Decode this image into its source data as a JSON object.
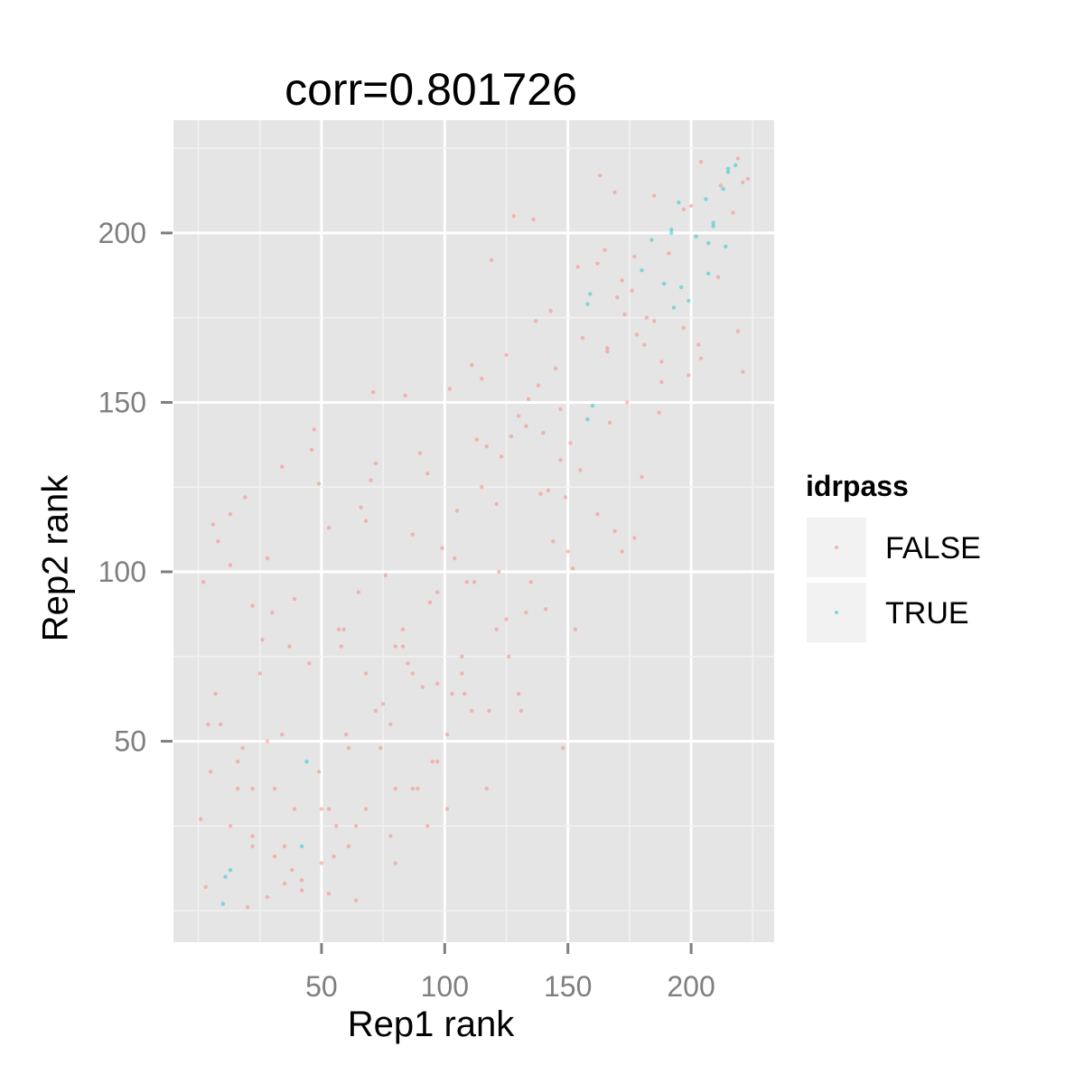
{
  "chart_data": {
    "type": "scatter",
    "title": "corr=0.801726",
    "xlabel": "Rep1 rank",
    "ylabel": "Rep2 rank",
    "xlim": [
      -10.1,
      233.7
    ],
    "ylim": [
      -9.3,
      233.3
    ],
    "xticks": [
      50,
      100,
      150,
      200
    ],
    "yticks": [
      50,
      100,
      150,
      200
    ],
    "xtick_labels": [
      "50",
      "100",
      "150",
      "200"
    ],
    "ytick_labels": [
      "50",
      "100",
      "150",
      "200"
    ],
    "grid": true,
    "legend": {
      "title": "idrpass",
      "placement": "right",
      "entries": [
        "FALSE",
        "TRUE"
      ]
    },
    "colors": {
      "FALSE": "#F8766D",
      "TRUE": "#00BFC4"
    },
    "series": [
      {
        "name": "FALSE",
        "points": [
          [
            204,
            221
          ],
          [
            219,
            222
          ],
          [
            223,
            216
          ],
          [
            221,
            215
          ],
          [
            212,
            214
          ],
          [
            217,
            206
          ],
          [
            200,
            208
          ],
          [
            197,
            207
          ],
          [
            185,
            211
          ],
          [
            163,
            217
          ],
          [
            169,
            212
          ],
          [
            128,
            205
          ],
          [
            136,
            204
          ],
          [
            119,
            192
          ],
          [
            165,
            195
          ],
          [
            177,
            193
          ],
          [
            191,
            194
          ],
          [
            154,
            190
          ],
          [
            162,
            191
          ],
          [
            172,
            186
          ],
          [
            176,
            183
          ],
          [
            170,
            181
          ],
          [
            211,
            187
          ],
          [
            173,
            176
          ],
          [
            182,
            175
          ],
          [
            185,
            174
          ],
          [
            197,
            172
          ],
          [
            219,
            171
          ],
          [
            178,
            170
          ],
          [
            181,
            167
          ],
          [
            156,
            169
          ],
          [
            166,
            166
          ],
          [
            166,
            165
          ],
          [
            203,
            167
          ],
          [
            204,
            163
          ],
          [
            221,
            159
          ],
          [
            188,
            162
          ],
          [
            199,
            158
          ],
          [
            188,
            156
          ],
          [
            143,
            177
          ],
          [
            137,
            174
          ],
          [
            125,
            164
          ],
          [
            111,
            161
          ],
          [
            115,
            157
          ],
          [
            145,
            160
          ],
          [
            138,
            155
          ],
          [
            134,
            151
          ],
          [
            174,
            150
          ],
          [
            187,
            147
          ],
          [
            147,
            148
          ],
          [
            130,
            146
          ],
          [
            133,
            143
          ],
          [
            140,
            141
          ],
          [
            127,
            140
          ],
          [
            167,
            144
          ],
          [
            113,
            139
          ],
          [
            117,
            137
          ],
          [
            123,
            134
          ],
          [
            151,
            138
          ],
          [
            147,
            133
          ],
          [
            155,
            130
          ],
          [
            180,
            128
          ],
          [
            115,
            125
          ],
          [
            139,
            123
          ],
          [
            142,
            124
          ],
          [
            149,
            122
          ],
          [
            121,
            120
          ],
          [
            105,
            118
          ],
          [
            162,
            117
          ],
          [
            169,
            112
          ],
          [
            177,
            110
          ],
          [
            144,
            109
          ],
          [
            8,
            109
          ],
          [
            99,
            107
          ],
          [
            13,
            102
          ],
          [
            28,
            104
          ],
          [
            104,
            104
          ],
          [
            76,
            99
          ],
          [
            2,
            97
          ],
          [
            109,
            97
          ],
          [
            112,
            97
          ],
          [
            65,
            94
          ],
          [
            97,
            94
          ],
          [
            94,
            91
          ],
          [
            39,
            92
          ],
          [
            22,
            90
          ],
          [
            30,
            88
          ],
          [
            57,
            83
          ],
          [
            59,
            83
          ],
          [
            83,
            83
          ],
          [
            26,
            80
          ],
          [
            37,
            78
          ],
          [
            58,
            78
          ],
          [
            80,
            78
          ],
          [
            83,
            78
          ],
          [
            107,
            75
          ],
          [
            45,
            73
          ],
          [
            85,
            73
          ],
          [
            25,
            70
          ],
          [
            68,
            70
          ],
          [
            87,
            70
          ],
          [
            107,
            70
          ],
          [
            91,
            66
          ],
          [
            97,
            67
          ],
          [
            7,
            64
          ],
          [
            103,
            64
          ],
          [
            108,
            64
          ],
          [
            75,
            61
          ],
          [
            72,
            59
          ],
          [
            111,
            59
          ],
          [
            4,
            55
          ],
          [
            9,
            55
          ],
          [
            78,
            55
          ],
          [
            34,
            52
          ],
          [
            60,
            52
          ],
          [
            101,
            52
          ],
          [
            28,
            50
          ],
          [
            18,
            48
          ],
          [
            61,
            48
          ],
          [
            74,
            48
          ],
          [
            16,
            44
          ],
          [
            95,
            44
          ],
          [
            97,
            44
          ],
          [
            5,
            41
          ],
          [
            49,
            41
          ],
          [
            16,
            36
          ],
          [
            22,
            36
          ],
          [
            31,
            36
          ],
          [
            80,
            36
          ],
          [
            87,
            36
          ],
          [
            89,
            36
          ],
          [
            39,
            30
          ],
          [
            50,
            30
          ],
          [
            53,
            30
          ],
          [
            68,
            30
          ],
          [
            101,
            30
          ],
          [
            1,
            27
          ],
          [
            13,
            25
          ],
          [
            56,
            25
          ],
          [
            64,
            25
          ],
          [
            93,
            25
          ],
          [
            22,
            22
          ],
          [
            78,
            22
          ],
          [
            22,
            19
          ],
          [
            35,
            19
          ],
          [
            61,
            19
          ],
          [
            31,
            16
          ],
          [
            55,
            16
          ],
          [
            50,
            14
          ],
          [
            80,
            14
          ],
          [
            38,
            12
          ],
          [
            35,
            8
          ],
          [
            42,
            9
          ],
          [
            42,
            6
          ],
          [
            3,
            7
          ],
          [
            53,
            5
          ],
          [
            28,
            4
          ],
          [
            64,
            3
          ],
          [
            20,
            1
          ],
          [
            150,
            106
          ],
          [
            172,
            106
          ],
          [
            152,
            101
          ],
          [
            122,
            100
          ],
          [
            135,
            97
          ],
          [
            141,
            89
          ],
          [
            133,
            88
          ],
          [
            125,
            86
          ],
          [
            121,
            83
          ],
          [
            153,
            83
          ],
          [
            126,
            75
          ],
          [
            130,
            64
          ],
          [
            118,
            59
          ],
          [
            131,
            59
          ],
          [
            148,
            48
          ],
          [
            117,
            36
          ],
          [
            71,
            153
          ],
          [
            84,
            152
          ],
          [
            102,
            154
          ],
          [
            47,
            142
          ],
          [
            46,
            136
          ],
          [
            34,
            131
          ],
          [
            49,
            126
          ],
          [
            72,
            132
          ],
          [
            70,
            127
          ],
          [
            90,
            135
          ],
          [
            93,
            129
          ],
          [
            19,
            122
          ],
          [
            13,
            117
          ],
          [
            6,
            114
          ],
          [
            66,
            119
          ],
          [
            68,
            115
          ],
          [
            53,
            113
          ],
          [
            87,
            111
          ]
        ]
      },
      {
        "name": "TRUE",
        "points": [
          [
            215,
            219
          ],
          [
            218,
            220
          ],
          [
            215,
            218
          ],
          [
            213,
            213
          ],
          [
            206,
            210
          ],
          [
            195,
            209
          ],
          [
            209,
            203
          ],
          [
            209,
            202
          ],
          [
            192,
            201
          ],
          [
            192,
            200
          ],
          [
            202,
            199
          ],
          [
            184,
            198
          ],
          [
            207,
            197
          ],
          [
            214,
            196
          ],
          [
            180,
            189
          ],
          [
            207,
            188
          ],
          [
            189,
            185
          ],
          [
            196,
            184
          ],
          [
            159,
            182
          ],
          [
            199,
            180
          ],
          [
            158,
            179
          ],
          [
            193,
            178
          ],
          [
            160,
            149
          ],
          [
            158,
            145
          ],
          [
            44,
            44
          ],
          [
            42,
            19
          ],
          [
            13,
            12
          ],
          [
            11,
            10
          ],
          [
            10,
            2
          ]
        ]
      }
    ]
  }
}
